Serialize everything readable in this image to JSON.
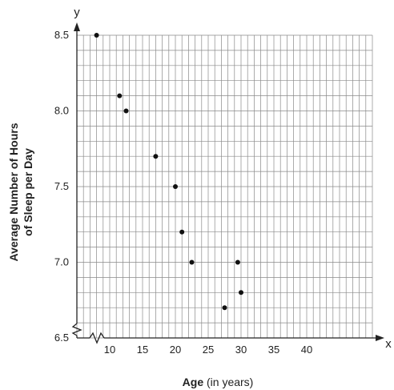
{
  "chart_data": {
    "type": "scatter",
    "title": "",
    "xlabel_main": "Age",
    "xlabel_unit": " (in years)",
    "ylabel_line1": "Average Number of Hours",
    "ylabel_line2": "of Sleep per Day",
    "x_axis_var": "x",
    "y_axis_var": "y",
    "xlim": [
      5,
      50
    ],
    "ylim": [
      6.5,
      8.5
    ],
    "x_ticks": [
      10,
      15,
      20,
      25,
      30,
      35,
      40
    ],
    "x_tick_labels": [
      "10",
      "15",
      "20",
      "25",
      "30",
      "35",
      "40"
    ],
    "y_ticks": [
      6.5,
      7.0,
      7.5,
      8.0,
      8.5
    ],
    "y_tick_labels": [
      "6.5",
      "7.0",
      "7.5",
      "8.0",
      "8.5"
    ],
    "grid": true,
    "axis_breaks": true,
    "points": [
      {
        "x": 8,
        "y": 8.5
      },
      {
        "x": 11.5,
        "y": 8.1
      },
      {
        "x": 12.5,
        "y": 8.0
      },
      {
        "x": 17,
        "y": 7.7
      },
      {
        "x": 20,
        "y": 7.5
      },
      {
        "x": 21,
        "y": 7.2
      },
      {
        "x": 22.5,
        "y": 7.0
      },
      {
        "x": 27.5,
        "y": 6.7
      },
      {
        "x": 29.5,
        "y": 7.0
      },
      {
        "x": 30,
        "y": 6.8
      }
    ],
    "colors": {
      "grid": "#8a8a8a",
      "axis": "#222222",
      "point": "#111111"
    }
  }
}
